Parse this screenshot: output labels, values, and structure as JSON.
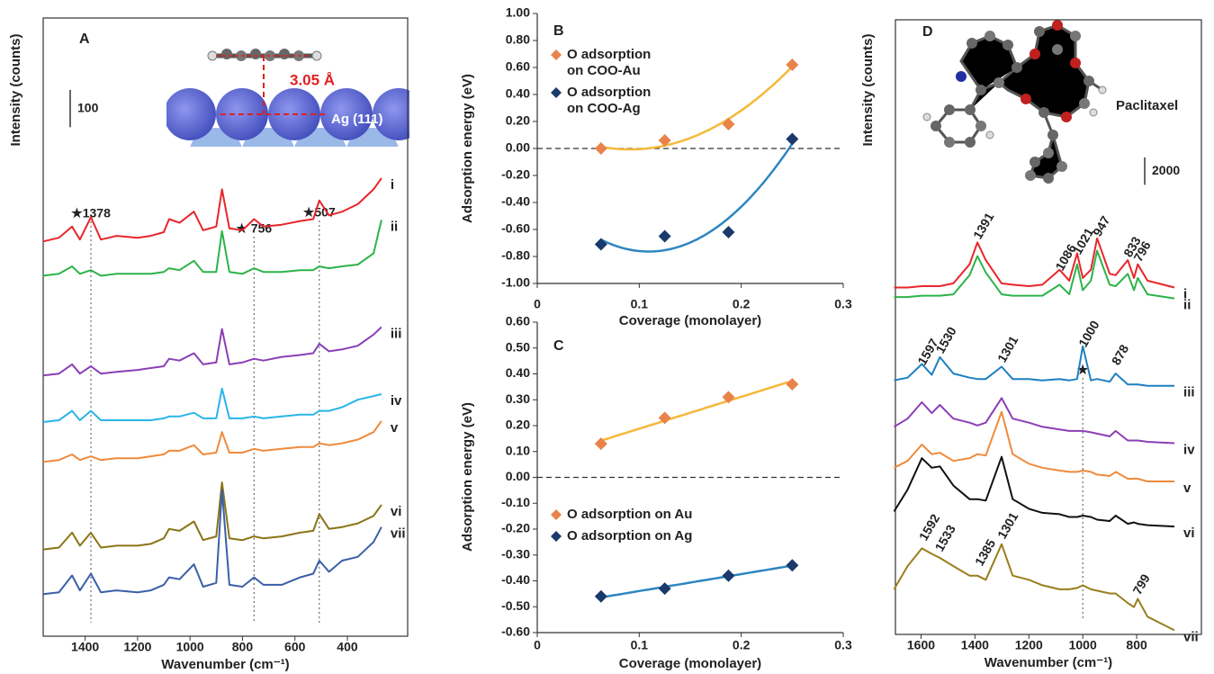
{
  "chart_data": [
    {
      "type": "line",
      "panel": "A",
      "xlabel": "Wavenumber (cm⁻¹)",
      "ylabel": "Intensity (counts)",
      "xlim": [
        1560,
        170
      ],
      "xticks": [
        1400,
        1200,
        1000,
        800,
        600,
        400
      ],
      "ylim": [
        0,
        1660
      ],
      "scale_bar": 100,
      "inset_labels": [
        "3.05 Å",
        "Ag (111)"
      ],
      "annotations": [
        {
          "label": "★1378",
          "x": 1378
        },
        {
          "label": "★ 756",
          "x": 756
        },
        {
          "label": "★507",
          "x": 507
        }
      ],
      "x": [
        1560,
        1500,
        1450,
        1420,
        1378,
        1340,
        1280,
        1200,
        1150,
        1100,
        1080,
        1040,
        985,
        950,
        900,
        878,
        850,
        800,
        756,
        720,
        650,
        580,
        530,
        507,
        470,
        420,
        360,
        300,
        270
      ],
      "series": [
        {
          "name": "i",
          "color": "#e8262a",
          "values": [
            1060,
            1070,
            1100,
            1065,
            1125,
            1065,
            1075,
            1070,
            1075,
            1085,
            1120,
            1110,
            1140,
            1090,
            1100,
            1200,
            1095,
            1090,
            1120,
            1100,
            1105,
            1115,
            1120,
            1170,
            1130,
            1140,
            1160,
            1200,
            1230
          ]
        },
        {
          "name": "ii",
          "color": "#2db34a",
          "values": [
            968,
            973,
            993,
            973,
            983,
            968,
            973,
            973,
            973,
            978,
            988,
            983,
            1008,
            978,
            978,
            1088,
            978,
            973,
            988,
            978,
            978,
            983,
            983,
            993,
            988,
            993,
            998,
            1028,
            1118
          ]
        },
        {
          "name": "iii",
          "color": "#8a3fb5",
          "values": [
            700,
            705,
            730,
            705,
            725,
            705,
            710,
            715,
            720,
            725,
            745,
            740,
            760,
            730,
            735,
            825,
            730,
            735,
            745,
            740,
            750,
            755,
            760,
            785,
            765,
            770,
            780,
            810,
            830
          ]
        },
        {
          "name": "iv",
          "color": "#29b5e8",
          "values": [
            575,
            580,
            605,
            580,
            605,
            580,
            580,
            580,
            580,
            585,
            590,
            590,
            600,
            585,
            585,
            665,
            585,
            585,
            590,
            585,
            590,
            595,
            595,
            605,
            605,
            615,
            635,
            645,
            650
          ]
        },
        {
          "name": "v",
          "color": "#ef8a3c",
          "values": [
            468,
            473,
            488,
            473,
            483,
            473,
            478,
            478,
            483,
            488,
            498,
            498,
            513,
            488,
            493,
            548,
            493,
            493,
            503,
            498,
            503,
            508,
            508,
            518,
            513,
            518,
            528,
            548,
            578
          ]
        },
        {
          "name": "vi",
          "color": "#8a7416",
          "values": [
            233,
            238,
            278,
            243,
            278,
            238,
            243,
            243,
            248,
            263,
            288,
            283,
            308,
            258,
            268,
            413,
            263,
            258,
            268,
            263,
            268,
            278,
            283,
            328,
            288,
            293,
            303,
            323,
            353
          ]
        },
        {
          "name": "vii",
          "color": "#3a5fa8",
          "values": [
            113,
            118,
            163,
            123,
            168,
            118,
            123,
            118,
            123,
            138,
            158,
            153,
            193,
            133,
            143,
            393,
            138,
            133,
            158,
            138,
            138,
            158,
            168,
            203,
            173,
            203,
            213,
            253,
            293
          ]
        }
      ]
    },
    {
      "type": "scatter",
      "panel": "B",
      "xlabel": "Coverage (monolayer)",
      "ylabel": "Adsorption energy (eV)",
      "xlim": [
        0,
        0.3
      ],
      "xticks": [
        0,
        0.1,
        0.2,
        0.3
      ],
      "ylim": [
        -1,
        1
      ],
      "yticks": [
        {
          "value": 1,
          "label": "1.00"
        },
        {
          "value": 0.8,
          "label": "0.80"
        },
        {
          "value": 0.6,
          "label": "0.60"
        },
        {
          "value": 0.4,
          "label": "0.40"
        },
        {
          "value": 0.2,
          "label": "0.20"
        },
        {
          "value": 0,
          "label": "0.00"
        },
        {
          "value": -0.2,
          "label": "-0.20"
        },
        {
          "value": -0.4,
          "label": "-0.40"
        },
        {
          "value": -0.6,
          "label": "-0.60"
        },
        {
          "value": -0.8,
          "label": "-0.80"
        },
        {
          "value": -1,
          "label": "-1.00"
        }
      ],
      "zero_line": true,
      "trendline_order": 2,
      "legend": "upper left",
      "x": [
        0.0625,
        0.125,
        0.1875,
        0.25
      ],
      "series": [
        {
          "name": "O adsorption on COO-Au",
          "color": "#e8834a",
          "line_color": "#f5b83a",
          "values": [
            0.0,
            0.06,
            0.18,
            0.62
          ]
        },
        {
          "name": "O adsorption on COO-Ag",
          "color": "#1a3a6b",
          "line_color": "#2e86c1",
          "values": [
            -0.71,
            -0.65,
            -0.62,
            0.07
          ]
        }
      ]
    },
    {
      "type": "scatter",
      "panel": "C",
      "xlabel": "Coverage (monolayer)",
      "ylabel": "Adsorption energy (eV)",
      "xlim": [
        0,
        0.3
      ],
      "xticks": [
        0,
        0.1,
        0.2,
        0.3
      ],
      "ylim": [
        -0.6,
        0.6
      ],
      "yticks": [
        {
          "value": 0.6,
          "label": "0.60"
        },
        {
          "value": 0.5,
          "label": "0.50"
        },
        {
          "value": 0.4,
          "label": "0.40"
        },
        {
          "value": 0.3,
          "label": "0.30"
        },
        {
          "value": 0.2,
          "label": "0.20"
        },
        {
          "value": 0.1,
          "label": "0.10"
        },
        {
          "value": 0,
          "label": "0.00"
        },
        {
          "value": -0.1,
          "label": "-0.10"
        },
        {
          "value": -0.2,
          "label": "-0.20"
        },
        {
          "value": -0.3,
          "label": "-0.30"
        },
        {
          "value": -0.4,
          "label": "-0.40"
        },
        {
          "value": -0.5,
          "label": "-0.50"
        },
        {
          "value": -0.6,
          "label": "-0.60"
        }
      ],
      "zero_line": true,
      "trendline_order": 1,
      "legend": "lower left",
      "x": [
        0.0625,
        0.125,
        0.1875,
        0.25
      ],
      "series": [
        {
          "name": "O adsorption on Au",
          "color": "#e8834a",
          "line_color": "#f5b83a",
          "values": [
            0.13,
            0.23,
            0.31,
            0.36
          ]
        },
        {
          "name": "O adsorption on Ag",
          "color": "#1a3a6b",
          "line_color": "#2e86c1",
          "values": [
            -0.46,
            -0.43,
            -0.38,
            -0.34
          ]
        }
      ]
    },
    {
      "type": "line",
      "panel": "D",
      "xlabel": "Wavenumber (cm⁻¹)",
      "ylabel": "Intensity (counts)",
      "xlim": [
        1695,
        560
      ],
      "xticks": [
        1600,
        1400,
        1200,
        1000,
        800
      ],
      "ylim": [
        0,
        45000
      ],
      "scale_bar": 2000,
      "inset_labels": [
        "Paclitaxel"
      ],
      "annotations": [
        {
          "label": "1391",
          "x": 1391
        },
        {
          "label": "1086",
          "x": 1086
        },
        {
          "label": "1021",
          "x": 1021
        },
        {
          "label": "947",
          "x": 947
        },
        {
          "label": "833",
          "x": 833
        },
        {
          "label": "796",
          "x": 796
        },
        {
          "label": "1597",
          "x": 1597
        },
        {
          "label": "1530",
          "x": 1530
        },
        {
          "label": "1301",
          "x": 1301
        },
        {
          "label": "★",
          "x": 1000
        },
        {
          "label": "1000",
          "x": 1000
        },
        {
          "label": "878",
          "x": 878
        },
        {
          "label": "1592",
          "x": 1592
        },
        {
          "label": "1533",
          "x": 1533
        },
        {
          "label": "1385",
          "x": 1385
        },
        {
          "label": "1301",
          "x": 1301
        },
        {
          "label": "799",
          "x": 799
        }
      ],
      "x": [
        1700,
        1650,
        1597,
        1560,
        1530,
        1480,
        1420,
        1391,
        1360,
        1301,
        1260,
        1200,
        1150,
        1086,
        1050,
        1021,
        1000,
        970,
        947,
        900,
        878,
        833,
        810,
        796,
        760,
        660
      ],
      "series": [
        {
          "name": "i",
          "color": "#e8262a",
          "values": [
            25400,
            25400,
            25500,
            25500,
            25500,
            25700,
            27100,
            28700,
            27400,
            25700,
            25600,
            25500,
            25600,
            26700,
            25900,
            27900,
            26100,
            26700,
            29000,
            26400,
            26300,
            27400,
            26100,
            27100,
            25900,
            25400
          ]
        },
        {
          "name": "ii",
          "color": "#2db34a",
          "values": [
            24700,
            24700,
            24800,
            24800,
            24800,
            24900,
            26300,
            27700,
            26500,
            24900,
            24800,
            24800,
            24800,
            25600,
            24900,
            27100,
            25200,
            25900,
            28100,
            25600,
            25500,
            26400,
            25200,
            26100,
            24900,
            24600
          ]
        },
        {
          "name": "iii",
          "color": "#1e7fc0",
          "values": [
            18600,
            18800,
            19800,
            19000,
            20300,
            19100,
            18800,
            18700,
            18700,
            19600,
            18700,
            18700,
            18600,
            18700,
            18600,
            18700,
            21100,
            18600,
            18700,
            18500,
            19100,
            18300,
            18300,
            18300,
            18200,
            18200
          ]
        },
        {
          "name": "iv",
          "color": "#8a3fb5",
          "values": [
            15200,
            15800,
            17000,
            16200,
            16800,
            15800,
            15500,
            15300,
            15500,
            17300,
            15800,
            15500,
            15200,
            15000,
            14900,
            14900,
            14900,
            14800,
            14700,
            14500,
            14900,
            14200,
            14200,
            14200,
            14100,
            14000
          ]
        },
        {
          "name": "v",
          "color": "#ef8a3c",
          "values": [
            12200,
            12700,
            13900,
            13200,
            13300,
            12700,
            12900,
            13200,
            13100,
            16300,
            13200,
            12500,
            12200,
            12000,
            11900,
            11900,
            12000,
            11900,
            11700,
            11600,
            11900,
            11400,
            11400,
            11400,
            11200,
            11200
          ]
        },
        {
          "name": "vi",
          "color": "#111111",
          "values": [
            9000,
            10600,
            12900,
            12200,
            12300,
            10900,
            9900,
            9900,
            9800,
            13000,
            9900,
            9200,
            8900,
            8800,
            8600,
            8600,
            8700,
            8600,
            8400,
            8300,
            8700,
            8100,
            8200,
            8100,
            8000,
            7900
          ]
        },
        {
          "name": "vii",
          "color": "#9a7d1c",
          "values": [
            3300,
            5000,
            6300,
            5900,
            5600,
            5000,
            4300,
            4300,
            4000,
            6600,
            4300,
            4000,
            3600,
            3300,
            3300,
            3400,
            3600,
            3300,
            3200,
            3000,
            3000,
            2300,
            2000,
            2600,
            1300,
            300
          ]
        }
      ]
    }
  ]
}
